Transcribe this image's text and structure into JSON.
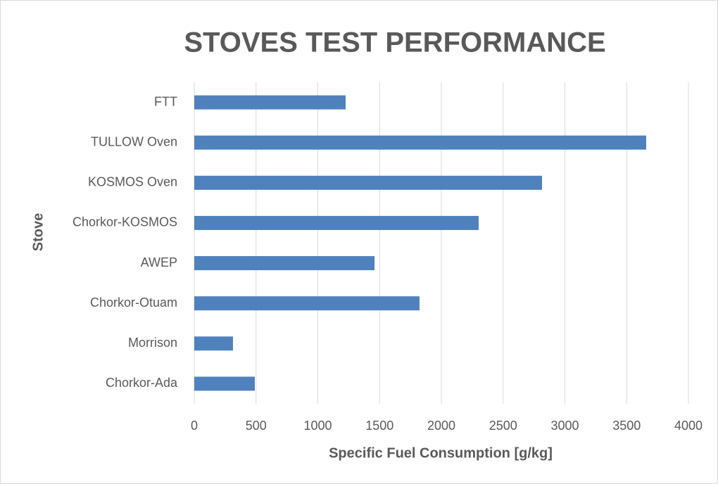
{
  "chart_data": {
    "type": "bar",
    "orientation": "horizontal",
    "title": "STOVES TEST PERFORMANCE",
    "x_label": "Specific Fuel Consumption [g/kg]",
    "y_label": "Stove",
    "categories": [
      "FTT",
      "TULLOW Oven",
      "KOSMOS Oven",
      "Chorkor-KOSMOS",
      "AWEP",
      "Chorkor-Otuam",
      "Morrison",
      "Chorkor-Ada"
    ],
    "values": [
      1225,
      3658,
      2815,
      2302,
      1459,
      1823,
      313,
      490
    ],
    "color": "#4f81bd",
    "xlim": [
      0,
      4000
    ],
    "xticks": [
      0,
      500,
      1000,
      1500,
      2000,
      2500,
      3000,
      3500,
      4000
    ],
    "grid": true
  }
}
